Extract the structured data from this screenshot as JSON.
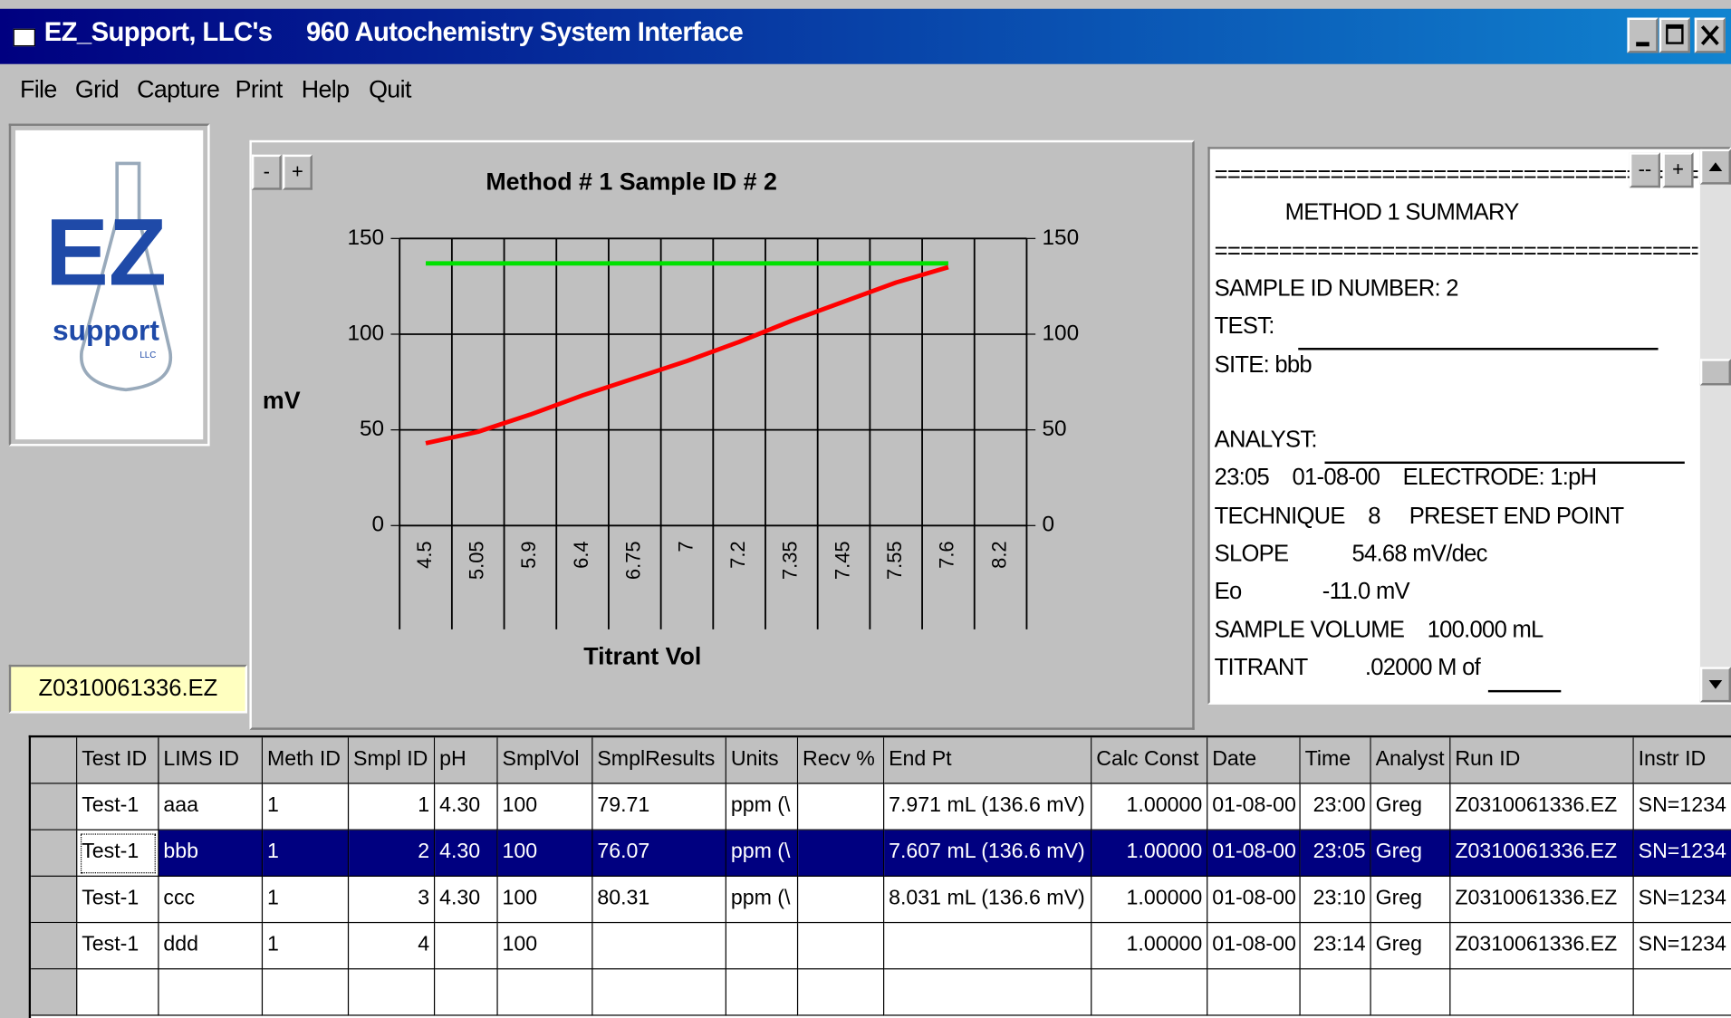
{
  "window": {
    "title": "EZ_Support, LLC's     960 Autochemistry System Interface"
  },
  "menu": [
    "File",
    "Grid",
    "Capture",
    "Print",
    "Help",
    "Quit"
  ],
  "logo": {
    "letters": "EZ",
    "word": "support",
    "small": "LLC"
  },
  "file_label": "Z0310061336.EZ",
  "zoom_buttons": [
    "-",
    "+"
  ],
  "summary_buttons": [
    "--",
    "+"
  ],
  "chart_data": {
    "type": "line",
    "title": "Method # 1  Sample ID # 2",
    "y_label": "mV",
    "x_label": "Titrant Vol",
    "categories": [
      "4.5",
      "5.05",
      "5.9",
      "6.4",
      "6.75",
      "7",
      "7.2",
      "7.35",
      "7.45",
      "7.55",
      "7.6",
      "8.2"
    ],
    "series": [
      {
        "color": "#00e000",
        "values": [
          137,
          137,
          137,
          137,
          137,
          137,
          137,
          137,
          137,
          137,
          137,
          null
        ]
      },
      {
        "color": "#ff0000",
        "values": [
          43,
          49,
          58,
          68,
          77,
          86,
          96,
          107,
          117,
          127,
          135,
          null
        ]
      }
    ],
    "ylim": [
      0,
      150
    ],
    "yticks": [
      0,
      50,
      100,
      150
    ],
    "grid": true
  },
  "summary": {
    "lines": [
      "========================================",
      "METHOD 1 SUMMARY",
      "========================================",
      "SAMPLE ID NUMBER: 2",
      "TEST:",
      "SITE: bbb",
      "ANALYST:",
      "23:05    01-08-00    ELECTRODE: 1:pH",
      "TECHNIQUE    8     PRESET END POINT",
      "SLOPE           54.68 mV/dec",
      "Eo              -11.0 mV",
      "SAMPLE VOLUME    100.000 mL",
      "TITRANT          .02000 M of"
    ]
  },
  "table": {
    "columns": [
      "Test ID",
      "LIMS ID",
      "Meth ID",
      "Smpl ID",
      "pH",
      "SmplVol",
      "SmplResults",
      "Units",
      "Recv %",
      "End Pt",
      "Calc Const",
      "Date",
      "Time",
      "Analyst",
      "Run ID",
      "Instr ID"
    ],
    "selected_row": 1,
    "rows": [
      [
        "Test-1",
        "aaa",
        "1",
        "1",
        "4.30",
        "100",
        "79.71",
        "ppm (\\",
        null,
        "7.971 mL (136.6 mV)",
        "1.00000",
        "01-08-00",
        "23:00",
        "Greg",
        "Z0310061336.EZ",
        "SN=1234"
      ],
      [
        "Test-1",
        "bbb",
        "1",
        "2",
        "4.30",
        "100",
        "76.07",
        "ppm (\\",
        null,
        "7.607 mL (136.6 mV)",
        "1.00000",
        "01-08-00",
        "23:05",
        "Greg",
        "Z0310061336.EZ",
        "SN=1234"
      ],
      [
        "Test-1",
        "ccc",
        "1",
        "3",
        "4.30",
        "100",
        "80.31",
        "ppm (\\",
        null,
        "8.031 mL (136.6 mV)",
        "1.00000",
        "01-08-00",
        "23:10",
        "Greg",
        "Z0310061336.EZ",
        "SN=1234"
      ],
      [
        "Test-1",
        "ddd",
        "1",
        "4",
        null,
        "100",
        null,
        null,
        null,
        null,
        "1.00000",
        "01-08-00",
        "23:14",
        "Greg",
        "Z0310061336.EZ",
        "SN=1234"
      ]
    ]
  }
}
